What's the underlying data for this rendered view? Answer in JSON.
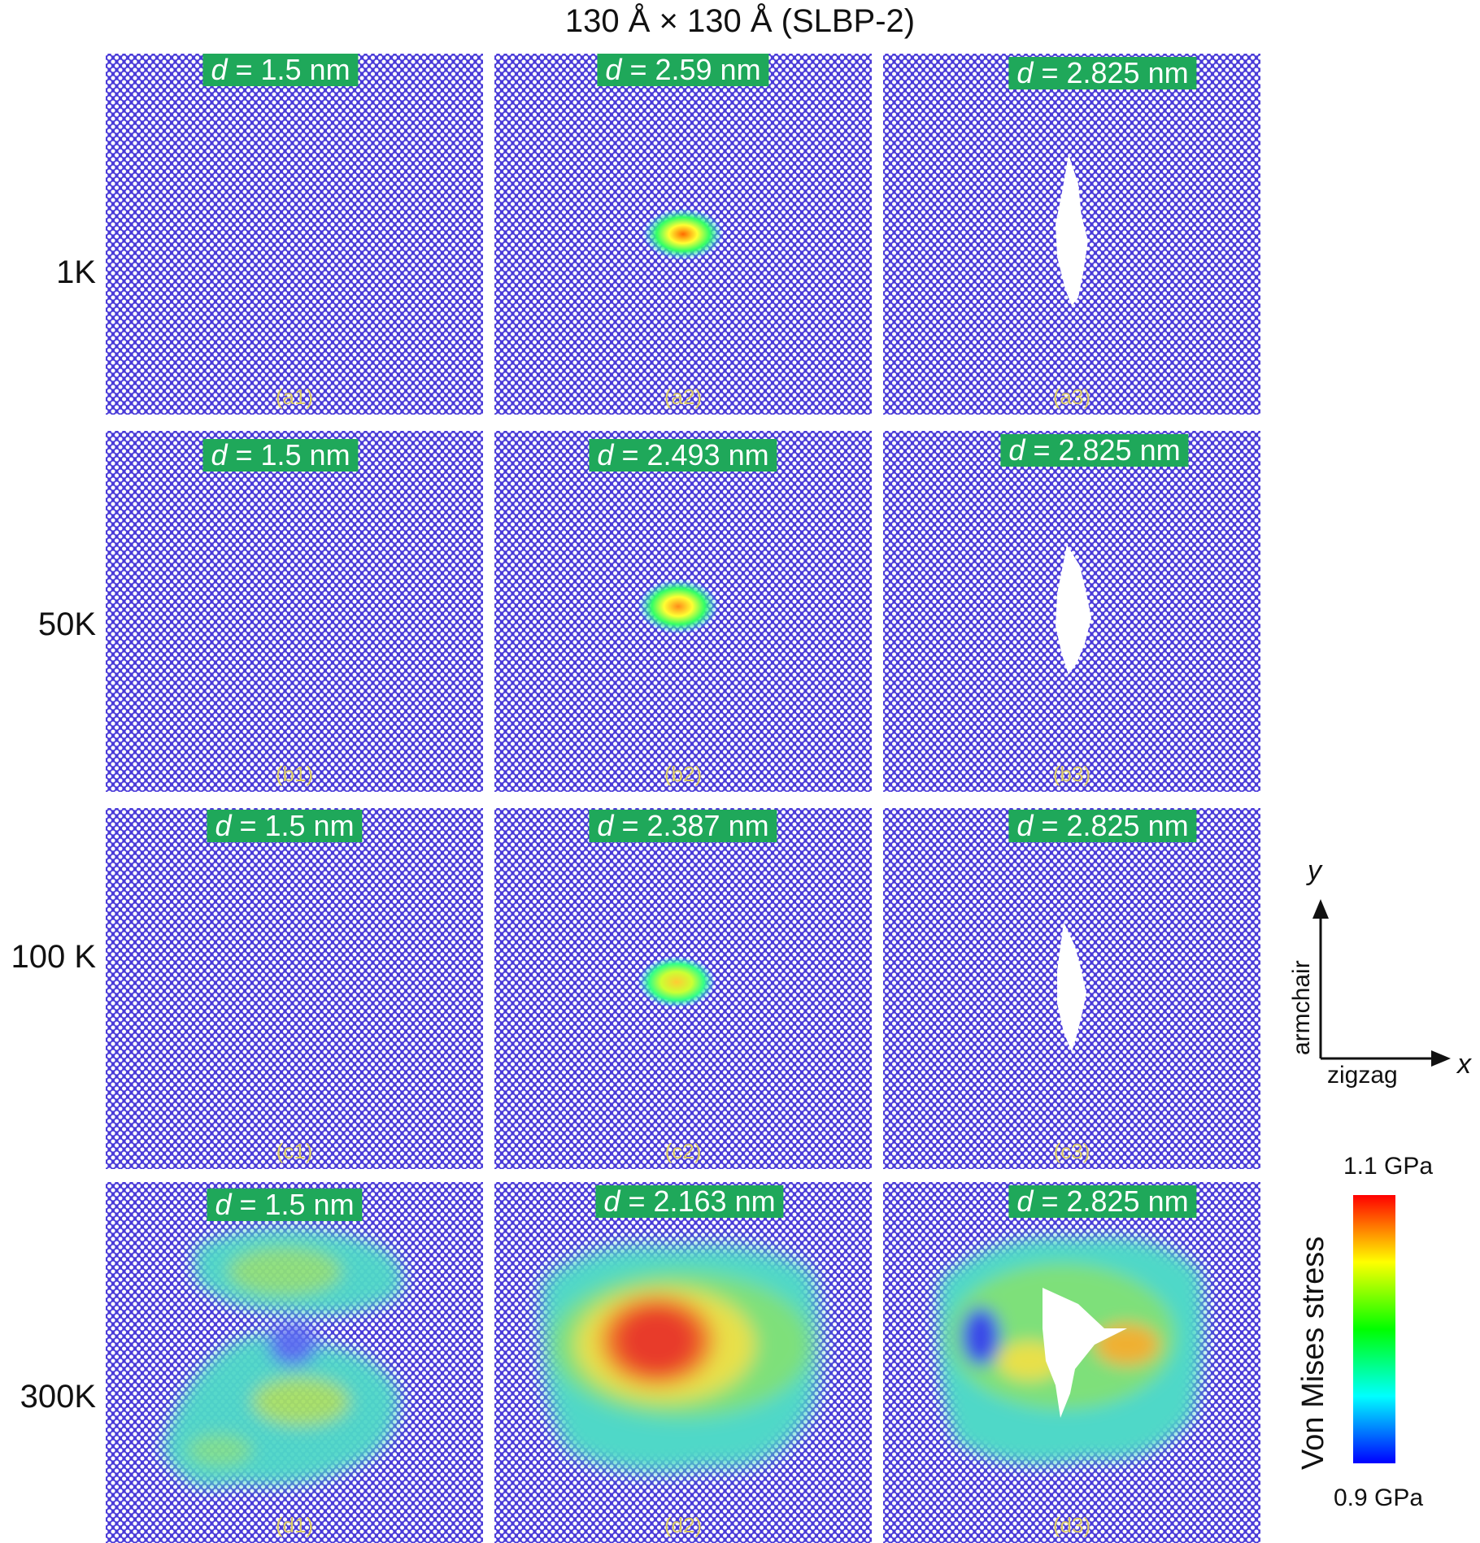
{
  "title": "130 Å × 130 Å (SLBP-2)",
  "row_labels": [
    "1K",
    "50K",
    "100 K",
    "300K"
  ],
  "panels": [
    {
      "id": "(a1)",
      "d_var": "d",
      "d_value": " = 1.5 nm"
    },
    {
      "id": "(a2)",
      "d_var": "d",
      "d_value": " = 2.59 nm"
    },
    {
      "id": "(a3)",
      "d_var": "d",
      "d_value": " = 2.825 nm"
    },
    {
      "id": "(b1)",
      "d_var": "d",
      "d_value": " = 1.5 nm"
    },
    {
      "id": "(b2)",
      "d_var": "d",
      "d_value": " = 2.493 nm"
    },
    {
      "id": "(b3)",
      "d_var": "d",
      "d_value": " = 2.825 nm"
    },
    {
      "id": "(c1)",
      "d_var": "d",
      "d_value": " = 1.5 nm"
    },
    {
      "id": "(c2)",
      "d_var": "d",
      "d_value": " = 2.387 nm"
    },
    {
      "id": "(c3)",
      "d_var": "d",
      "d_value": " = 2.825 nm"
    },
    {
      "id": "(d1)",
      "d_var": "d",
      "d_value": " = 1.5 nm"
    },
    {
      "id": "(d2)",
      "d_var": "d",
      "d_value": " = 2.163 nm"
    },
    {
      "id": "(d3)",
      "d_var": "d",
      "d_value": " = 2.825 nm"
    }
  ],
  "axes": {
    "y_var": "y",
    "x_var": "x",
    "y_dir": "armchair",
    "x_dir": "zigzag"
  },
  "colorbar": {
    "title": "Von Mises stress",
    "max_label": "1.1 GPa",
    "min_label": "0.9 GPa",
    "colors": [
      "#0000ff",
      "#00ffff",
      "#00ff00",
      "#ffff00",
      "#ff0000"
    ]
  }
}
